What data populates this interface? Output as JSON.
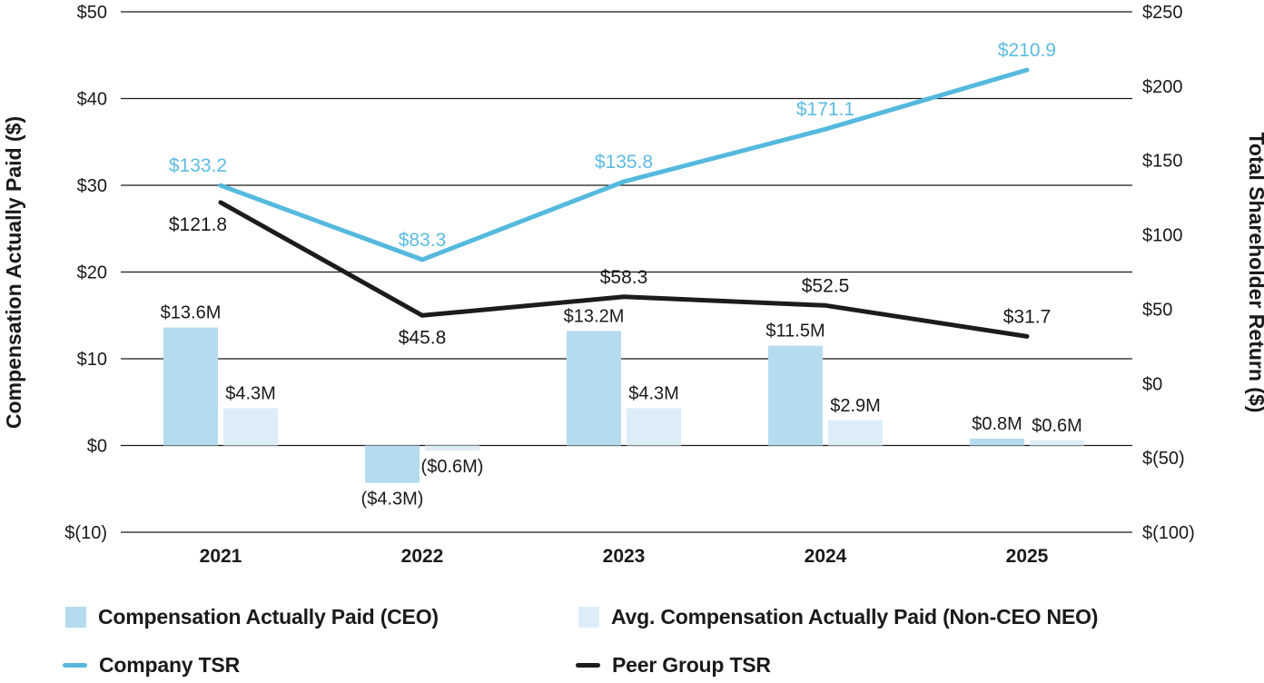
{
  "chart_data": {
    "type": "bar+line combo (pay versus performance)",
    "categories": [
      "2021",
      "2022",
      "2023",
      "2024",
      "2025"
    ],
    "bar_series": [
      {
        "id": "ceo-cap",
        "name": "Compensation Actually Paid (CEO)",
        "axis": "left",
        "color": "#B5DBEF",
        "values": [
          13.6,
          -4.3,
          13.2,
          11.5,
          0.8
        ],
        "labels": [
          "$13.6M",
          "($4.3M)",
          "$13.2M",
          "$11.5M",
          "$0.8M"
        ]
      },
      {
        "id": "neo-cap",
        "name": "Avg. Compensation Actually Paid (Non-CEO NEO)",
        "axis": "left",
        "color": "#DCEDF8",
        "values": [
          4.3,
          -0.6,
          4.3,
          2.9,
          0.6
        ],
        "labels": [
          "$4.3M",
          "($0.6M)",
          "$4.3M",
          "$2.9M",
          "$0.6M"
        ]
      }
    ],
    "line_series": [
      {
        "id": "company-tsr",
        "name": "Company TSR",
        "axis": "right",
        "color": "#55B9DE",
        "label_color": "#5CBCE0",
        "values": [
          133.2,
          83.3,
          135.8,
          171.1,
          210.9
        ],
        "labels": [
          "$133.2",
          "$83.3",
          "$135.8",
          "$171.1",
          "$210.9"
        ],
        "label_positions": [
          "above",
          "above",
          "above",
          "above",
          "above"
        ]
      },
      {
        "id": "peer-group-tsr",
        "name": "Peer Group TSR",
        "axis": "right",
        "color": "#1C1C1C",
        "label_color": "#1A1A1A",
        "values": [
          121.8,
          45.8,
          58.3,
          52.5,
          31.7
        ],
        "labels": [
          "$121.8",
          "$45.8",
          "$58.3",
          "$52.5",
          "$31.7"
        ],
        "label_positions": [
          "below",
          "below",
          "above",
          "above",
          "above"
        ]
      }
    ],
    "left_axis": {
      "title": "Compensation Actually Paid ($)",
      "range": [
        -10,
        50
      ],
      "ticks": [
        50,
        40,
        30,
        20,
        10,
        0,
        -10
      ],
      "tick_labels": [
        "$50",
        "$40",
        "$30",
        "$20",
        "$10",
        "$0",
        "$(10)"
      ]
    },
    "right_axis": {
      "title": "Total Shareholder Return ($)",
      "range": [
        -100,
        250
      ],
      "ticks": [
        250,
        200,
        150,
        100,
        50,
        0,
        -50,
        -100
      ],
      "tick_labels": [
        "$250",
        "$200",
        "$150",
        "$100",
        "$50",
        "$0",
        "$(50)",
        "$(100)"
      ]
    },
    "grid": "horizontal gridlines at left-axis ticks only",
    "legend_position": "bottom, two columns by two rows"
  },
  "legend": {
    "items": [
      {
        "label": "Compensation Actually Paid (CEO)",
        "swatch": "square",
        "color": "#B5DBEF"
      },
      {
        "label": "Avg. Compensation Actually Paid (Non-CEO NEO)",
        "swatch": "square",
        "color": "#DCEDF8"
      },
      {
        "label": "Company TSR",
        "swatch": "line",
        "color": "#55B9DE"
      },
      {
        "label": "Peer Group TSR",
        "swatch": "line",
        "color": "#1C1C1C"
      }
    ]
  },
  "colors": {
    "background": "#FFFFFF",
    "gridline": "#1A1A1A",
    "text": "#1A1A1A"
  }
}
